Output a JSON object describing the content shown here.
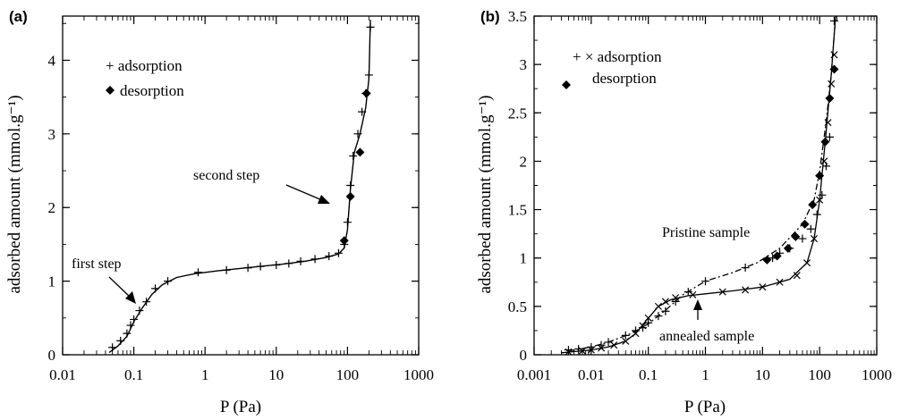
{
  "chart_data": [
    {
      "type": "scatter",
      "panel_label": "(a)",
      "xlabel": "P (Pa)",
      "ylabel": "adsorbed amount  (mmol.g⁻¹)",
      "xscale": "log",
      "xlim": [
        0.01,
        1000
      ],
      "ylim": [
        0,
        4.6
      ],
      "xticks": [
        0.01,
        0.1,
        1,
        10,
        100,
        1000
      ],
      "xtick_labels": [
        "0.01",
        "0.1",
        "1",
        "10",
        "100",
        "1000"
      ],
      "yticks": [
        0,
        1,
        2,
        3,
        4
      ],
      "ytick_labels": [
        "0",
        "1",
        "2",
        "3",
        "4"
      ],
      "legend": {
        "placement": "top-left",
        "entries": [
          "+ adsorption",
          "desorption"
        ]
      },
      "annotations": [
        {
          "text": "first step",
          "x": 0.1,
          "y": 0.48
        },
        {
          "text": "second step",
          "x": 100,
          "y": 2.1
        }
      ],
      "series": [
        {
          "name": "adsorption",
          "marker": "plus",
          "x": [
            0.05,
            0.065,
            0.08,
            0.09,
            0.1,
            0.12,
            0.15,
            0.2,
            0.3,
            0.8,
            2,
            4,
            6,
            10,
            15,
            22,
            35,
            55,
            75,
            90,
            100,
            110,
            120,
            140,
            160,
            180,
            200,
            210
          ],
          "y": [
            0.1,
            0.19,
            0.29,
            0.4,
            0.48,
            0.6,
            0.72,
            0.9,
            1.0,
            1.12,
            1.15,
            1.18,
            1.2,
            1.22,
            1.24,
            1.27,
            1.3,
            1.34,
            1.38,
            1.5,
            1.8,
            2.3,
            2.7,
            3.0,
            3.3,
            3.55,
            3.8,
            4.45
          ]
        },
        {
          "name": "desorption",
          "marker": "diamond",
          "x": [
            90,
            110,
            150,
            185
          ],
          "y": [
            1.55,
            2.15,
            2.75,
            3.55
          ]
        }
      ],
      "curve": {
        "x": [
          0.045,
          0.06,
          0.08,
          0.1,
          0.13,
          0.18,
          0.25,
          0.4,
          0.7,
          1.5,
          3,
          6,
          12,
          25,
          50,
          75,
          90,
          100,
          110,
          125,
          150,
          180,
          200,
          210
        ],
        "y": [
          0.03,
          0.12,
          0.25,
          0.45,
          0.63,
          0.82,
          0.95,
          1.05,
          1.1,
          1.14,
          1.17,
          1.2,
          1.23,
          1.27,
          1.32,
          1.37,
          1.45,
          1.7,
          2.25,
          2.75,
          3.0,
          3.35,
          3.75,
          4.55
        ]
      }
    },
    {
      "type": "scatter",
      "panel_label": "(b)",
      "xlabel": "P (Pa)",
      "ylabel": "adsorbed amount  (mmol.g⁻¹)",
      "xscale": "log",
      "xlim": [
        0.001,
        1000
      ],
      "ylim": [
        0,
        3.5
      ],
      "xticks": [
        0.001,
        0.01,
        0.1,
        1,
        10,
        100,
        1000
      ],
      "xtick_labels": [
        "0.001",
        "0.01",
        "0.1",
        "1",
        "10",
        "100",
        "1000"
      ],
      "yticks": [
        0,
        0.5,
        1,
        1.5,
        2,
        2.5,
        3,
        3.5
      ],
      "ytick_labels": [
        "0",
        "0.5",
        "1",
        "1.5",
        "2",
        "2.5",
        "3",
        "3.5"
      ],
      "legend": {
        "placement": "top-left",
        "entries": [
          "+ × adsorption",
          "desorption"
        ]
      },
      "annotations": [
        {
          "text": "Pristine sample",
          "x": 10,
          "y": 1.1
        },
        {
          "text": "annealed sample",
          "x": 1,
          "y": 0.62
        }
      ],
      "series": [
        {
          "name": "Pristine sample",
          "marker": "plus",
          "x": [
            0.004,
            0.006,
            0.01,
            0.015,
            0.02,
            0.04,
            0.06,
            0.08,
            0.1,
            0.15,
            0.2,
            0.3,
            0.5,
            1,
            5,
            15,
            20,
            30,
            50,
            70,
            90,
            110,
            130,
            150,
            180
          ],
          "y": [
            0.05,
            0.06,
            0.08,
            0.1,
            0.13,
            0.2,
            0.25,
            0.28,
            0.33,
            0.4,
            0.45,
            0.55,
            0.65,
            0.76,
            0.9,
            1.0,
            1.05,
            1.1,
            1.2,
            1.3,
            1.45,
            1.65,
            1.95,
            2.25,
            3.45
          ]
        },
        {
          "name": "annealed sample",
          "marker": "cross",
          "x": [
            0.004,
            0.007,
            0.01,
            0.015,
            0.025,
            0.04,
            0.06,
            0.08,
            0.1,
            0.15,
            0.2,
            0.3,
            0.6,
            2,
            5,
            10,
            20,
            40,
            60,
            80,
            100,
            120,
            140,
            160,
            180
          ],
          "y": [
            0.03,
            0.04,
            0.05,
            0.07,
            0.1,
            0.14,
            0.22,
            0.3,
            0.38,
            0.5,
            0.55,
            0.59,
            0.62,
            0.65,
            0.67,
            0.7,
            0.75,
            0.82,
            0.95,
            1.2,
            1.6,
            2.0,
            2.4,
            2.8,
            3.1
          ]
        },
        {
          "name": "desorption",
          "marker": "diamond",
          "x": [
            12,
            18,
            28,
            38,
            55,
            75,
            100,
            125,
            150,
            180
          ],
          "y": [
            0.98,
            1.02,
            1.1,
            1.22,
            1.35,
            1.55,
            1.85,
            2.2,
            2.65,
            2.95
          ]
        }
      ],
      "curves": [
        {
          "name": "Pristine sample",
          "style": "dash-dot",
          "x": [
            0.004,
            0.01,
            0.02,
            0.05,
            0.1,
            0.2,
            0.4,
            1,
            3,
            8,
            20,
            50,
            80,
            100,
            130,
            160,
            190
          ],
          "y": [
            0.04,
            0.08,
            0.13,
            0.22,
            0.32,
            0.46,
            0.62,
            0.76,
            0.85,
            0.95,
            1.1,
            1.35,
            1.6,
            1.9,
            2.4,
            2.9,
            3.5
          ]
        },
        {
          "name": "annealed sample",
          "style": "solid",
          "x": [
            0.003,
            0.01,
            0.02,
            0.04,
            0.06,
            0.1,
            0.15,
            0.25,
            0.5,
            1,
            3,
            10,
            30,
            60,
            80,
            100,
            130,
            160,
            190
          ],
          "y": [
            0.02,
            0.05,
            0.08,
            0.14,
            0.22,
            0.38,
            0.5,
            0.57,
            0.61,
            0.63,
            0.66,
            0.7,
            0.78,
            0.95,
            1.2,
            1.6,
            2.3,
            2.9,
            3.5
          ]
        }
      ]
    }
  ]
}
